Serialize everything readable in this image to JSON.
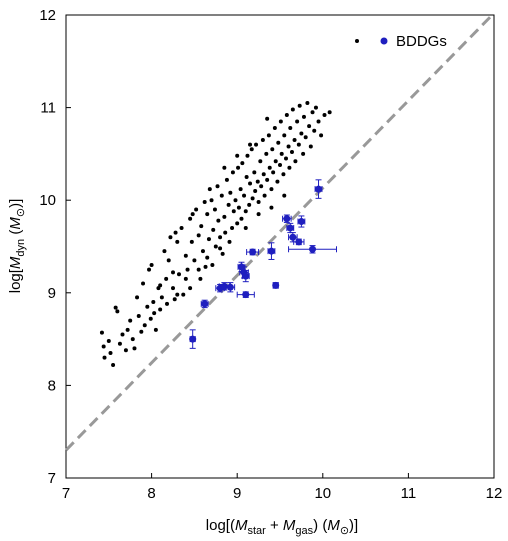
{
  "chart_data": {
    "type": "scatter",
    "xlim": [
      7,
      12
    ],
    "ylim": [
      7,
      12
    ],
    "xticks": [
      "7",
      "8",
      "9",
      "10",
      "11",
      "12"
    ],
    "yticks": [
      "7",
      "8",
      "9",
      "10",
      "11",
      "12"
    ],
    "xlabel": {
      "pre": "log[(",
      "m1": "M",
      "s1": "star",
      "mid": " + ",
      "m2": "M",
      "s2": "gas",
      "post": ") (",
      "m3": "M",
      "s3": "⊙",
      "end": ")]"
    },
    "ylabel": {
      "pre": "log[",
      "m1": "M",
      "s1": "dyn",
      "mid": " (",
      "m2": "M",
      "s2": "⊙",
      "end": ")]"
    },
    "grid": false,
    "legend_position": "top-right",
    "reference_line": {
      "style": "dashed",
      "color": "#999999",
      "points": [
        [
          7,
          7.3
        ],
        [
          12,
          12.02
        ]
      ]
    },
    "series": [
      {
        "name": "",
        "marker": "small-dot",
        "color": "#000000",
        "points": [
          [
            7.42,
            8.57
          ],
          [
            7.44,
            8.42
          ],
          [
            7.45,
            8.3
          ],
          [
            7.5,
            8.48
          ],
          [
            7.52,
            8.35
          ],
          [
            7.55,
            8.22
          ],
          [
            7.58,
            8.84
          ],
          [
            7.6,
            8.8
          ],
          [
            7.63,
            8.45
          ],
          [
            7.66,
            8.55
          ],
          [
            7.7,
            8.38
          ],
          [
            7.72,
            8.6
          ],
          [
            7.75,
            8.7
          ],
          [
            7.78,
            8.5
          ],
          [
            7.8,
            8.4
          ],
          [
            7.83,
            8.95
          ],
          [
            7.85,
            8.75
          ],
          [
            7.88,
            8.58
          ],
          [
            7.9,
            9.1
          ],
          [
            7.92,
            8.65
          ],
          [
            7.95,
            8.85
          ],
          [
            7.97,
            9.25
          ],
          [
            7.99,
            8.72
          ],
          [
            8.0,
            9.3
          ],
          [
            8.02,
            8.9
          ],
          [
            8.03,
            8.78
          ],
          [
            8.05,
            8.6
          ],
          [
            8.08,
            9.05
          ],
          [
            8.1,
            8.82
          ],
          [
            8.12,
            8.95
          ],
          [
            8.15,
            9.45
          ],
          [
            8.17,
            9.15
          ],
          [
            8.18,
            8.88
          ],
          [
            8.2,
            9.35
          ],
          [
            8.22,
            9.6
          ],
          [
            8.25,
            9.05
          ],
          [
            8.27,
            8.93
          ],
          [
            8.3,
            9.55
          ],
          [
            8.32,
            9.2
          ],
          [
            8.35,
            9.7
          ],
          [
            8.37,
            8.98
          ],
          [
            8.4,
            9.4
          ],
          [
            8.42,
            9.25
          ],
          [
            8.45,
            9.8
          ],
          [
            8.47,
            9.55
          ],
          [
            8.5,
            9.35
          ],
          [
            8.52,
            9.9
          ],
          [
            8.55,
            9.62
          ],
          [
            8.57,
            9.15
          ],
          [
            8.58,
            9.72
          ],
          [
            8.6,
            9.45
          ],
          [
            8.62,
            9.98
          ],
          [
            8.63,
            9.28
          ],
          [
            8.65,
            9.85
          ],
          [
            8.67,
            9.58
          ],
          [
            8.7,
            10.0
          ],
          [
            8.71,
            9.3
          ],
          [
            8.72,
            9.68
          ],
          [
            8.74,
            9.9
          ],
          [
            8.75,
            9.5
          ],
          [
            8.77,
            10.15
          ],
          [
            8.78,
            9.78
          ],
          [
            8.8,
            9.6
          ],
          [
            8.82,
            10.05
          ],
          [
            8.83,
            9.42
          ],
          [
            8.85,
            9.82
          ],
          [
            8.86,
            9.65
          ],
          [
            8.88,
            10.22
          ],
          [
            8.9,
            9.95
          ],
          [
            8.91,
            9.55
          ],
          [
            8.92,
            10.08
          ],
          [
            8.94,
            9.7
          ],
          [
            8.95,
            10.3
          ],
          [
            8.96,
            9.88
          ],
          [
            8.98,
            10.0
          ],
          [
            9.0,
            9.75
          ],
          [
            9.01,
            10.35
          ],
          [
            9.02,
            9.92
          ],
          [
            9.04,
            10.12
          ],
          [
            9.05,
            9.8
          ],
          [
            9.06,
            10.4
          ],
          [
            9.08,
            10.05
          ],
          [
            9.1,
            9.88
          ],
          [
            9.11,
            10.25
          ],
          [
            9.12,
            10.48
          ],
          [
            9.14,
            9.95
          ],
          [
            9.15,
            10.18
          ],
          [
            9.17,
            10.55
          ],
          [
            9.18,
            10.02
          ],
          [
            9.2,
            10.3
          ],
          [
            9.21,
            10.1
          ],
          [
            9.22,
            10.6
          ],
          [
            9.24,
            10.2
          ],
          [
            9.25,
            9.98
          ],
          [
            9.27,
            10.42
          ],
          [
            9.28,
            10.15
          ],
          [
            9.3,
            10.65
          ],
          [
            9.31,
            10.28
          ],
          [
            9.32,
            10.05
          ],
          [
            9.34,
            10.5
          ],
          [
            9.35,
            10.22
          ],
          [
            9.37,
            10.7
          ],
          [
            9.38,
            10.35
          ],
          [
            9.4,
            10.12
          ],
          [
            9.41,
            10.55
          ],
          [
            9.42,
            10.3
          ],
          [
            9.44,
            10.78
          ],
          [
            9.45,
            10.42
          ],
          [
            9.47,
            10.2
          ],
          [
            9.48,
            10.62
          ],
          [
            9.5,
            10.38
          ],
          [
            9.51,
            10.85
          ],
          [
            9.52,
            10.5
          ],
          [
            9.54,
            10.28
          ],
          [
            9.55,
            10.7
          ],
          [
            9.57,
            10.45
          ],
          [
            9.58,
            10.92
          ],
          [
            9.6,
            10.58
          ],
          [
            9.61,
            10.35
          ],
          [
            9.62,
            10.78
          ],
          [
            9.64,
            10.52
          ],
          [
            9.65,
            10.98
          ],
          [
            9.67,
            10.65
          ],
          [
            9.68,
            10.42
          ],
          [
            9.7,
            10.85
          ],
          [
            9.72,
            10.6
          ],
          [
            9.73,
            11.02
          ],
          [
            9.75,
            10.72
          ],
          [
            9.77,
            10.5
          ],
          [
            9.78,
            10.9
          ],
          [
            9.8,
            10.68
          ],
          [
            9.82,
            11.05
          ],
          [
            9.84,
            10.8
          ],
          [
            9.86,
            10.58
          ],
          [
            9.88,
            10.95
          ],
          [
            9.9,
            10.75
          ],
          [
            9.92,
            11.0
          ],
          [
            9.95,
            10.85
          ],
          [
            9.98,
            10.7
          ],
          [
            10.02,
            10.92
          ],
          [
            10.08,
            10.95
          ],
          [
            8.3,
            8.98
          ],
          [
            8.4,
            9.15
          ],
          [
            8.55,
            9.25
          ],
          [
            8.65,
            9.38
          ],
          [
            8.8,
            9.48
          ],
          [
            9.1,
            9.7
          ],
          [
            9.25,
            9.85
          ],
          [
            9.4,
            9.92
          ],
          [
            9.55,
            10.05
          ],
          [
            8.28,
            9.65
          ],
          [
            8.48,
            9.85
          ],
          [
            8.68,
            10.12
          ],
          [
            8.85,
            10.35
          ],
          [
            9.0,
            10.48
          ],
          [
            9.15,
            10.6
          ],
          [
            9.35,
            10.88
          ],
          [
            8.1,
            9.08
          ],
          [
            8.25,
            9.22
          ],
          [
            8.45,
            9.05
          ]
        ]
      },
      {
        "name": "BDDGs",
        "marker": "large-dot",
        "color": "#1f1fbf",
        "points": [
          {
            "x": 8.48,
            "y": 8.5,
            "xerr": 0.03,
            "yerr": 0.1
          },
          {
            "x": 8.62,
            "y": 8.88,
            "xerr": 0.04,
            "yerr": 0.04
          },
          {
            "x": 8.8,
            "y": 9.05,
            "xerr": 0.05,
            "yerr": 0.04
          },
          {
            "x": 8.85,
            "y": 9.07,
            "xerr": 0.06,
            "yerr": 0.04
          },
          {
            "x": 8.92,
            "y": 9.06,
            "xerr": 0.05,
            "yerr": 0.05
          },
          {
            "x": 9.05,
            "y": 9.28,
            "xerr": 0.04,
            "yerr": 0.05
          },
          {
            "x": 9.08,
            "y": 9.22,
            "xerr": 0.05,
            "yerr": 0.06
          },
          {
            "x": 9.1,
            "y": 9.18,
            "xerr": 0.04,
            "yerr": 0.06
          },
          {
            "x": 9.1,
            "y": 8.98,
            "xerr": 0.1,
            "yerr": 0.03
          },
          {
            "x": 9.18,
            "y": 9.44,
            "xerr": 0.07,
            "yerr": 0.03
          },
          {
            "x": 9.4,
            "y": 9.45,
            "xerr": 0.04,
            "yerr": 0.09
          },
          {
            "x": 9.45,
            "y": 9.08,
            "xerr": 0.03,
            "yerr": 0.03
          },
          {
            "x": 9.58,
            "y": 9.8,
            "xerr": 0.05,
            "yerr": 0.04
          },
          {
            "x": 9.62,
            "y": 9.7,
            "xerr": 0.04,
            "yerr": 0.05
          },
          {
            "x": 9.65,
            "y": 9.6,
            "xerr": 0.05,
            "yerr": 0.05
          },
          {
            "x": 9.72,
            "y": 9.55,
            "xerr": 0.06,
            "yerr": 0.03
          },
          {
            "x": 9.75,
            "y": 9.77,
            "xerr": 0.04,
            "yerr": 0.06
          },
          {
            "x": 9.88,
            "y": 9.47,
            "xerr": 0.28,
            "yerr": 0.04
          },
          {
            "x": 9.95,
            "y": 10.12,
            "xerr": 0.04,
            "yerr": 0.1
          }
        ]
      }
    ]
  }
}
